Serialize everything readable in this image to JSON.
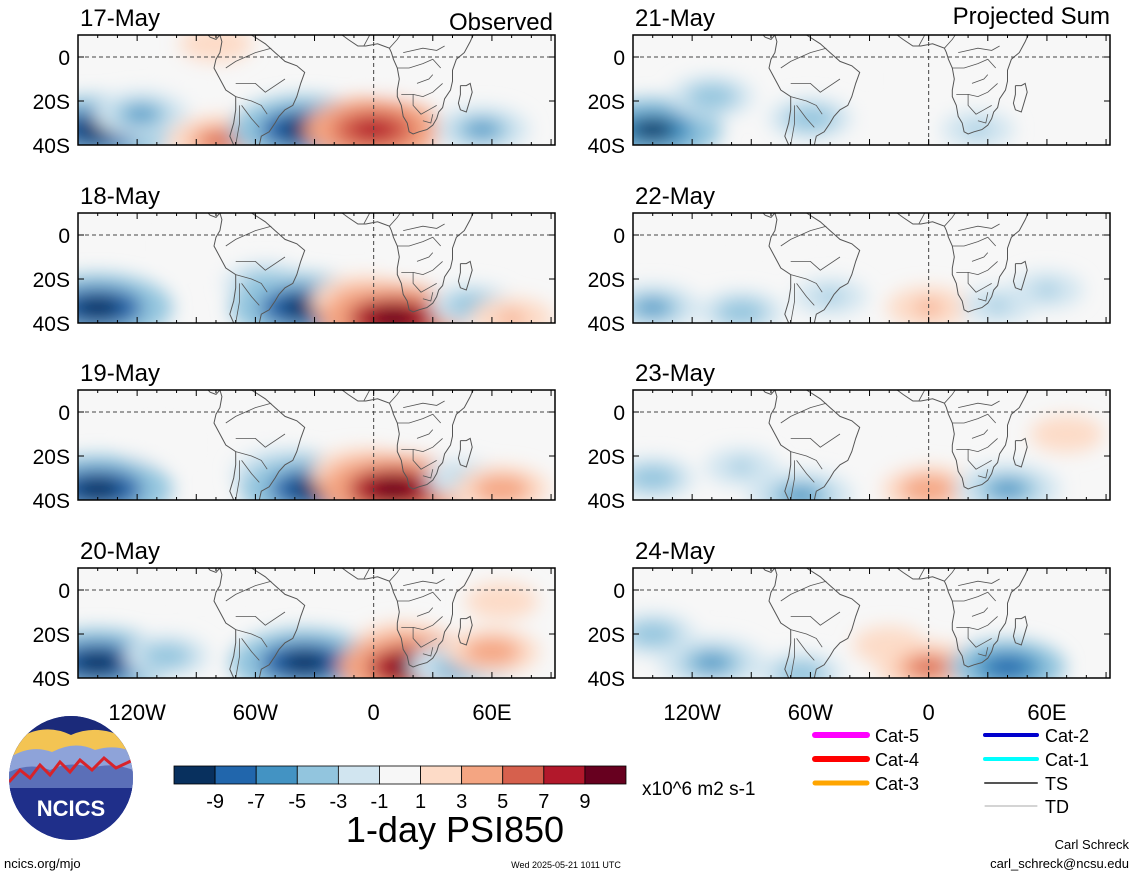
{
  "labels": {
    "left_column_title": "Observed",
    "right_column_title": "Projected Sum",
    "colorbar_unit": "x10^6 m2 s-1",
    "figure_title": "1-day PSI850",
    "logo_text": "NCICS",
    "website": "ncics.org/mjo",
    "timestamp": "Wed 2025-05-21 1011 UTC",
    "author": "Carl Schreck",
    "email": "carl_schreck@ncsu.edu"
  },
  "axes": {
    "lat_ticks": [
      "0",
      "20S",
      "40S"
    ],
    "lon_ticks": [
      "120W",
      "60W",
      "0",
      "60E"
    ]
  },
  "panels_left": [
    {
      "date": "17-May"
    },
    {
      "date": "18-May"
    },
    {
      "date": "19-May"
    },
    {
      "date": "20-May"
    }
  ],
  "panels_right": [
    {
      "date": "21-May"
    },
    {
      "date": "22-May"
    },
    {
      "date": "23-May"
    },
    {
      "date": "24-May"
    }
  ],
  "colorbar": {
    "tick_labels": [
      "-9",
      "-7",
      "-5",
      "-3",
      "-1",
      "1",
      "3",
      "5",
      "7",
      "9"
    ],
    "colors": [
      "#08305e",
      "#2166ac",
      "#4393c3",
      "#92c5de",
      "#d1e5f0",
      "#f7f7f7",
      "#fddbc7",
      "#f4a582",
      "#d6604d",
      "#b2182b",
      "#67001f"
    ]
  },
  "legend": [
    {
      "label": "Cat-5",
      "color": "#ff00ff",
      "width": 6
    },
    {
      "label": "Cat-2",
      "color": "#0000cd",
      "width": 4
    },
    {
      "label": "Cat-4",
      "color": "#ff0000",
      "width": 6
    },
    {
      "label": "Cat-1",
      "color": "#00ffff",
      "width": 4
    },
    {
      "label": "Cat-3",
      "color": "#ffa500",
      "width": 5
    },
    {
      "label": "TS",
      "color": "#555555",
      "width": 2
    },
    {
      "label": "TD",
      "color": "#aaaaaa",
      "width": 1
    }
  ],
  "anomalies": {
    "panel_0": [
      {
        "lon": -140,
        "lat": -33,
        "v": -10
      },
      {
        "lon": -118,
        "lat": -26,
        "v": -5
      },
      {
        "lon": -90,
        "lat": -12,
        "v": 2
      },
      {
        "lon": -78,
        "lat": -38,
        "v": 6
      },
      {
        "lon": -35,
        "lat": -33,
        "v": -10
      },
      {
        "lon": 0,
        "lat": -33,
        "v": 9
      },
      {
        "lon": 12,
        "lat": -10,
        "v": 1
      },
      {
        "lon": 55,
        "lat": -33,
        "v": -5
      },
      {
        "lon": -80,
        "lat": 6,
        "v": 3
      },
      {
        "lon": 35,
        "lat": 6,
        "v": -2
      }
    ],
    "panel_1": [
      {
        "lon": -140,
        "lat": -33,
        "v": -10
      },
      {
        "lon": -90,
        "lat": -5,
        "v": 2
      },
      {
        "lon": -55,
        "lat": -22,
        "v": -4
      },
      {
        "lon": -35,
        "lat": -33,
        "v": -10
      },
      {
        "lon": -5,
        "lat": -30,
        "v": 6
      },
      {
        "lon": 10,
        "lat": -38,
        "v": 10
      },
      {
        "lon": 50,
        "lat": -32,
        "v": -4
      },
      {
        "lon": 70,
        "lat": -38,
        "v": 4
      },
      {
        "lon": 20,
        "lat": 0,
        "v": 2
      }
    ],
    "panel_2": [
      {
        "lon": -140,
        "lat": -35,
        "v": -10
      },
      {
        "lon": -110,
        "lat": -15,
        "v": -2
      },
      {
        "lon": -45,
        "lat": -28,
        "v": -6
      },
      {
        "lon": -30,
        "lat": -35,
        "v": -10
      },
      {
        "lon": -5,
        "lat": -28,
        "v": 6
      },
      {
        "lon": 10,
        "lat": -35,
        "v": 10
      },
      {
        "lon": 45,
        "lat": -30,
        "v": -3
      },
      {
        "lon": 65,
        "lat": -35,
        "v": 5
      },
      {
        "lon": -60,
        "lat": 5,
        "v": 2
      }
    ],
    "panel_3": [
      {
        "lon": -140,
        "lat": -33,
        "v": -10
      },
      {
        "lon": -105,
        "lat": -30,
        "v": -4
      },
      {
        "lon": -85,
        "lat": 5,
        "v": 2
      },
      {
        "lon": -35,
        "lat": -33,
        "v": -10
      },
      {
        "lon": 15,
        "lat": -25,
        "v": 5
      },
      {
        "lon": 20,
        "lat": -35,
        "v": 10
      },
      {
        "lon": 45,
        "lat": -35,
        "v": -6
      },
      {
        "lon": 60,
        "lat": -28,
        "v": 5
      },
      {
        "lon": 65,
        "lat": -5,
        "v": 3
      }
    ],
    "panel_4": [
      {
        "lon": -140,
        "lat": -33,
        "v": -9
      },
      {
        "lon": -110,
        "lat": -18,
        "v": -4
      },
      {
        "lon": -60,
        "lat": -28,
        "v": -4
      },
      {
        "lon": -20,
        "lat": -32,
        "v": 2
      },
      {
        "lon": 0,
        "lat": -10,
        "v": -1
      },
      {
        "lon": 25,
        "lat": -33,
        "v": -3
      },
      {
        "lon": -100,
        "lat": 7,
        "v": 2
      }
    ],
    "panel_5": [
      {
        "lon": -140,
        "lat": -33,
        "v": -5
      },
      {
        "lon": -95,
        "lat": -35,
        "v": -4
      },
      {
        "lon": -50,
        "lat": -28,
        "v": -3
      },
      {
        "lon": 0,
        "lat": -33,
        "v": 4
      },
      {
        "lon": 35,
        "lat": -32,
        "v": -3
      },
      {
        "lon": 60,
        "lat": -25,
        "v": -3
      },
      {
        "lon": -80,
        "lat": 5,
        "v": 2
      }
    ],
    "panel_6": [
      {
        "lon": -140,
        "lat": -30,
        "v": -4
      },
      {
        "lon": -95,
        "lat": -25,
        "v": -3
      },
      {
        "lon": -65,
        "lat": -38,
        "v": -6
      },
      {
        "lon": -20,
        "lat": -28,
        "v": 2
      },
      {
        "lon": 0,
        "lat": -35,
        "v": 5
      },
      {
        "lon": 40,
        "lat": -35,
        "v": -6
      },
      {
        "lon": 70,
        "lat": -10,
        "v": 3
      }
    ],
    "panel_7": [
      {
        "lon": -140,
        "lat": -20,
        "v": -4
      },
      {
        "lon": -110,
        "lat": -33,
        "v": -6
      },
      {
        "lon": -65,
        "lat": -38,
        "v": -4
      },
      {
        "lon": -20,
        "lat": -25,
        "v": 3
      },
      {
        "lon": 0,
        "lat": -35,
        "v": 6
      },
      {
        "lon": 40,
        "lat": -35,
        "v": -7
      },
      {
        "lon": -100,
        "lat": 7,
        "v": 2
      }
    ]
  }
}
